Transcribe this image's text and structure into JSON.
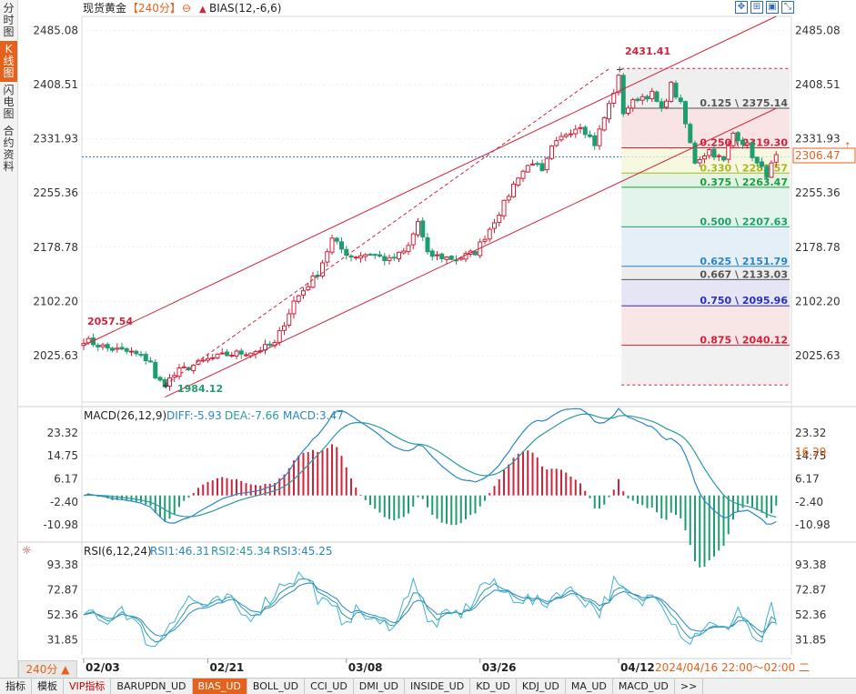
{
  "instrument": "现货黄金",
  "period_label": "【240分】",
  "main_indicator": "BIAS(12,-6,6)",
  "left_tabs": [
    "分时图",
    "K线图",
    "闪电图",
    "合约资料"
  ],
  "price_axis": {
    "ticks": [
      "2485.08",
      "2408.51",
      "2331.93",
      "2255.36",
      "2178.78",
      "2102.20",
      "2025.63"
    ],
    "min": 1960,
    "max": 2505
  },
  "current_price": "2306.47",
  "annotations": {
    "high": "2431.41",
    "low": "1984.12",
    "first": "2057.54"
  },
  "fib_levels": [
    {
      "label": "0.125 \\ 2375.14",
      "value": 2375.14,
      "color": "#555555"
    },
    {
      "label": "0.250 \\ 2319.30",
      "value": 2319.3,
      "color": "#d0233a"
    },
    {
      "label": "0.330 \\ 2283.57",
      "value": 2283.57,
      "color": "#a8b820"
    },
    {
      "label": "0.375 \\ 2263.47",
      "value": 2263.47,
      "color": "#1e9e3e"
    },
    {
      "label": "0.500 \\ 2207.63",
      "value": 2207.63,
      "color": "#1e9e6e"
    },
    {
      "label": "0.625 \\ 2151.79",
      "value": 2151.79,
      "color": "#2a86c8"
    },
    {
      "label": "0.667 \\ 2133.03",
      "value": 2133.03,
      "color": "#555555"
    },
    {
      "label": "0.750 \\ 2095.96",
      "value": 2095.96,
      "color": "#2a30b8"
    },
    {
      "label": "0.875 \\ 2040.12",
      "value": 2040.12,
      "color": "#d0233a"
    }
  ],
  "macd": {
    "title": "MACD(26,12,9)",
    "diff": "DIFF:-5.93",
    "dea": "DEA:-7.66",
    "macd": "MACD:3.47",
    "ticks": [
      "23.32",
      "14.75",
      "6.17",
      "-2.40",
      "-10.98"
    ],
    "current": "16.29",
    "min": -16,
    "max": 28
  },
  "rsi": {
    "title": "RSI(6,12,24)",
    "rsi1": "RSI1:46.31",
    "rsi2": "RSI2:45.34",
    "rsi3": "RSI3:45.25",
    "ticks": [
      "93.38",
      "72.87",
      "52.36",
      "31.85"
    ],
    "min": 18,
    "max": 100
  },
  "x_axis": {
    "labels": [
      "02/03",
      "02/21",
      "03/08",
      "03/26",
      "04/12"
    ],
    "label_idx": [
      0,
      26,
      55,
      83,
      112
    ],
    "cursor_time": "2024/04/16 22:00～02:00 二"
  },
  "period_button": "240分 ▲",
  "footer_tabs": [
    "指标",
    "模板",
    "VIP指标",
    "BARUPDN_UD",
    "BIAS_UD",
    "BOLL_UD",
    "CCI_UD",
    "DMI_UD",
    "INSIDE_UD",
    "KD_UD",
    "KDJ_UD",
    "MA_UD",
    "MACD_UD",
    ">>"
  ],
  "colors": {
    "up": "#d0233a",
    "down": "#1e9e6e",
    "diff": "#2a86c8",
    "dea": "#2a9c9c",
    "accent": "#e4621b"
  },
  "chart_data": {
    "type": "candlestick",
    "title": "现货黄金 240分",
    "anchor_closes": [
      [
        0,
        2048
      ],
      [
        5,
        2036
      ],
      [
        10,
        2030
      ],
      [
        14,
        2018
      ],
      [
        15,
        1992
      ],
      [
        17,
        1986
      ],
      [
        20,
        2004
      ],
      [
        26,
        2020
      ],
      [
        30,
        2027
      ],
      [
        36,
        2032
      ],
      [
        40,
        2042
      ],
      [
        44,
        2102
      ],
      [
        49,
        2142
      ],
      [
        52,
        2190
      ],
      [
        54,
        2176
      ],
      [
        56,
        2166
      ],
      [
        60,
        2170
      ],
      [
        64,
        2160
      ],
      [
        67,
        2172
      ],
      [
        68,
        2180
      ],
      [
        70,
        2215
      ],
      [
        72,
        2168
      ],
      [
        78,
        2162
      ],
      [
        82,
        2172
      ],
      [
        85,
        2205
      ],
      [
        88,
        2240
      ],
      [
        91,
        2280
      ],
      [
        94,
        2300
      ],
      [
        96,
        2283
      ],
      [
        98,
        2318
      ],
      [
        101,
        2340
      ],
      [
        104,
        2352
      ],
      [
        107,
        2325
      ],
      [
        110,
        2380
      ],
      [
        112,
        2418
      ],
      [
        113,
        2370
      ],
      [
        116,
        2390
      ],
      [
        119,
        2395
      ],
      [
        121,
        2372
      ],
      [
        123,
        2408
      ],
      [
        125,
        2380
      ],
      [
        127,
        2325
      ],
      [
        128,
        2300
      ],
      [
        131,
        2316
      ],
      [
        134,
        2300
      ],
      [
        136,
        2340
      ],
      [
        139,
        2322
      ],
      [
        141,
        2296
      ],
      [
        143,
        2282
      ],
      [
        145,
        2306
      ]
    ],
    "rsi_anchors": [
      [
        0,
        55
      ],
      [
        4,
        45
      ],
      [
        8,
        60
      ],
      [
        12,
        38
      ],
      [
        15,
        25
      ],
      [
        18,
        48
      ],
      [
        22,
        66
      ],
      [
        26,
        58
      ],
      [
        30,
        65
      ],
      [
        34,
        50
      ],
      [
        38,
        62
      ],
      [
        42,
        80
      ],
      [
        46,
        85
      ],
      [
        50,
        62
      ],
      [
        54,
        50
      ],
      [
        58,
        55
      ],
      [
        62,
        42
      ],
      [
        66,
        50
      ],
      [
        69,
        85
      ],
      [
        72,
        44
      ],
      [
        76,
        50
      ],
      [
        80,
        56
      ],
      [
        84,
        80
      ],
      [
        88,
        70
      ],
      [
        92,
        66
      ],
      [
        96,
        60
      ],
      [
        100,
        74
      ],
      [
        104,
        68
      ],
      [
        108,
        55
      ],
      [
        111,
        78
      ],
      [
        113,
        70
      ],
      [
        116,
        60
      ],
      [
        120,
        72
      ],
      [
        124,
        44
      ],
      [
        127,
        30
      ],
      [
        130,
        45
      ],
      [
        134,
        38
      ],
      [
        137,
        58
      ],
      [
        140,
        36
      ],
      [
        142,
        25
      ],
      [
        144,
        64
      ],
      [
        145,
        46
      ]
    ],
    "channel": {
      "upper": [
        {
          "x": 0,
          "y": 2040
        },
        {
          "x": 145,
          "y": 2505
        }
      ],
      "lower": [
        {
          "x": 17,
          "y": 1967
        },
        {
          "x": 145,
          "y": 2375
        }
      ],
      "dashed": [
        {
          "x": 17,
          "y": 1984
        },
        {
          "x": 110,
          "y": 2431
        }
      ]
    },
    "fib_range": [
      2431.41,
      1984.12
    ],
    "ylim": [
      1960,
      2505
    ]
  }
}
